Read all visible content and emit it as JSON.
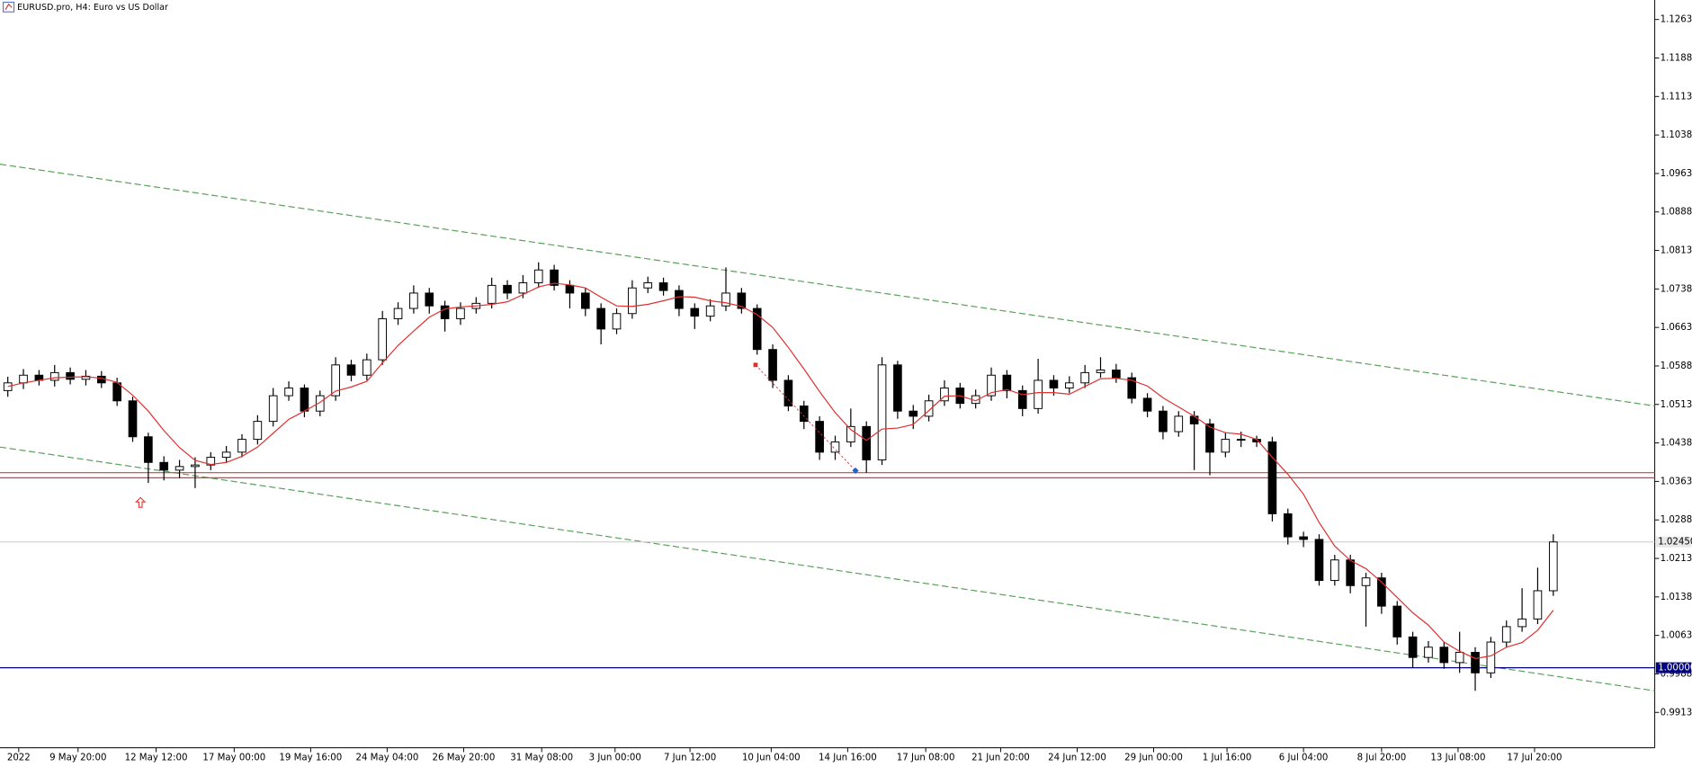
{
  "chart_data": {
    "type": "candlestick",
    "title": "EURUSD.pro, H4:  Euro vs US Dollar",
    "ylim": [
      0.9844,
      1.1301
    ],
    "xlim": [
      0,
      106
    ],
    "yticks": [
      {
        "value": 1.1263,
        "label": "1.12630"
      },
      {
        "value": 1.1188,
        "label": "1.11880"
      },
      {
        "value": 1.1113,
        "label": "1.11130"
      },
      {
        "value": 1.1038,
        "label": "1.10380"
      },
      {
        "value": 1.0963,
        "label": "1.09630"
      },
      {
        "value": 1.0888,
        "label": "1.08880"
      },
      {
        "value": 1.0813,
        "label": "1.08130"
      },
      {
        "value": 1.0738,
        "label": "1.07380"
      },
      {
        "value": 1.0663,
        "label": "1.06630"
      },
      {
        "value": 1.0588,
        "label": "1.05880"
      },
      {
        "value": 1.0513,
        "label": "1.05130"
      },
      {
        "value": 1.0438,
        "label": "1.04380"
      },
      {
        "value": 1.0363,
        "label": "1.03630"
      },
      {
        "value": 1.0288,
        "label": "1.02880"
      },
      {
        "value": 1.0213,
        "label": "1.02130"
      },
      {
        "value": 1.0138,
        "label": "1.01380"
      },
      {
        "value": 1.0063,
        "label": "1.00630"
      },
      {
        "value": 0.9988,
        "label": "0.99880"
      },
      {
        "value": 0.9913,
        "label": "0.99130"
      }
    ],
    "xticks": [
      {
        "value": 1.2,
        "label": "2022"
      },
      {
        "value": 5.0,
        "label": "9 May 20:00"
      },
      {
        "value": 10.0,
        "label": "12 May 12:00"
      },
      {
        "value": 15.0,
        "label": "17 May 00:00"
      },
      {
        "value": 19.9,
        "label": "19 May 16:00"
      },
      {
        "value": 24.8,
        "label": "24 May 04:00"
      },
      {
        "value": 29.7,
        "label": "26 May 20:00"
      },
      {
        "value": 34.7,
        "label": "31 May 08:00"
      },
      {
        "value": 39.4,
        "label": "3 Jun 00:00"
      },
      {
        "value": 44.2,
        "label": "7 Jun 12:00"
      },
      {
        "value": 49.4,
        "label": "10 Jun 04:00"
      },
      {
        "value": 54.3,
        "label": "14 Jun 16:00"
      },
      {
        "value": 59.3,
        "label": "17 Jun 08:00"
      },
      {
        "value": 64.1,
        "label": "21 Jun 20:00"
      },
      {
        "value": 69.0,
        "label": "24 Jun 12:00"
      },
      {
        "value": 73.9,
        "label": "29 Jun 00:00"
      },
      {
        "value": 78.6,
        "label": "1 Jul 16:00"
      },
      {
        "value": 83.5,
        "label": "6 Jul 04:00"
      },
      {
        "value": 88.5,
        "label": "8 Jul 20:00"
      },
      {
        "value": 93.4,
        "label": "13 Jul 08:00"
      },
      {
        "value": 98.3,
        "label": "17 Jul 20:00"
      }
    ],
    "open": [
      1.054,
      1.0555,
      1.057,
      1.056,
      1.0575,
      1.0562,
      1.0568,
      1.0555,
      1.052,
      1.045,
      1.04,
      1.0385,
      1.0392,
      1.0395,
      1.041,
      1.042,
      1.0445,
      1.048,
      1.053,
      1.0545,
      1.05,
      1.053,
      1.059,
      1.057,
      1.06,
      1.068,
      1.07,
      1.073,
      1.0705,
      1.068,
      1.07,
      1.071,
      1.0745,
      1.073,
      1.075,
      1.0775,
      1.0745,
      1.073,
      1.07,
      1.066,
      1.069,
      1.074,
      1.075,
      1.0735,
      1.07,
      1.0685,
      1.0705,
      1.073,
      1.07,
      1.062,
      1.056,
      1.051,
      1.048,
      1.042,
      1.044,
      1.047,
      1.0405,
      1.059,
      1.05,
      1.049,
      1.052,
      1.0545,
      1.0515,
      1.053,
      1.057,
      1.054,
      1.0505,
      1.056,
      1.0545,
      1.0555,
      1.0575,
      1.058,
      1.0565,
      1.0525,
      1.05,
      1.046,
      1.049,
      1.0475,
      1.042,
      1.0445,
      1.0445,
      1.044,
      1.03,
      1.0255,
      1.025,
      1.017,
      1.021,
      1.016,
      1.0175,
      1.012,
      1.006,
      1.002,
      1.004,
      1.001,
      1.003,
      0.999,
      1.005,
      1.008,
      1.0095,
      1.015
    ],
    "high": [
      1.0567,
      1.0582,
      1.058,
      1.059,
      1.0585,
      1.058,
      1.0578,
      1.0565,
      1.0528,
      1.0458,
      1.0412,
      1.0405,
      1.041,
      1.042,
      1.0432,
      1.0455,
      1.0492,
      1.0545,
      1.0558,
      1.0552,
      1.054,
      1.0605,
      1.06,
      1.0612,
      1.0695,
      1.0712,
      1.0745,
      1.074,
      1.0715,
      1.0712,
      1.0722,
      1.076,
      1.0755,
      1.0765,
      1.079,
      1.0785,
      1.0755,
      1.074,
      1.071,
      1.07,
      1.0755,
      1.0762,
      1.076,
      1.0745,
      1.071,
      1.0718,
      1.078,
      1.074,
      1.0708,
      1.063,
      1.057,
      1.052,
      1.049,
      1.0452,
      1.0505,
      1.048,
      1.0605,
      1.0598,
      1.0512,
      1.0532,
      1.056,
      1.0555,
      1.0542,
      1.0585,
      1.058,
      1.055,
      1.0602,
      1.057,
      1.0568,
      1.059,
      1.0605,
      1.0592,
      1.0575,
      1.0535,
      1.051,
      1.05,
      1.05,
      1.0485,
      1.0458,
      1.046,
      1.0452,
      1.045,
      1.031,
      1.0265,
      1.026,
      1.022,
      1.022,
      1.0185,
      1.0185,
      1.013,
      1.007,
      1.0052,
      1.005,
      1.007,
      1.004,
      1.006,
      1.0092,
      1.0155,
      1.0195,
      1.026
    ],
    "low": [
      1.0528,
      1.0543,
      1.055,
      1.0548,
      1.0552,
      1.055,
      1.0545,
      1.051,
      1.044,
      1.036,
      1.0365,
      1.037,
      1.035,
      1.0385,
      1.04,
      1.041,
      1.0435,
      1.047,
      1.052,
      1.0488,
      1.049,
      1.052,
      1.0558,
      1.056,
      1.059,
      1.0668,
      1.069,
      1.069,
      1.0655,
      1.0668,
      1.069,
      1.07,
      1.0718,
      1.072,
      1.074,
      1.0735,
      1.07,
      1.0685,
      1.063,
      1.065,
      1.068,
      1.073,
      1.0725,
      1.0685,
      1.066,
      1.0675,
      1.0695,
      1.069,
      1.061,
      1.0545,
      1.05,
      1.0465,
      1.0405,
      1.0405,
      1.043,
      1.038,
      1.0395,
      1.0485,
      1.0465,
      1.048,
      1.051,
      1.0505,
      1.0505,
      1.052,
      1.0525,
      1.049,
      1.0495,
      1.053,
      1.0535,
      1.0545,
      1.0565,
      1.0555,
      1.0515,
      1.0488,
      1.0445,
      1.045,
      1.0385,
      1.0375,
      1.041,
      1.043,
      1.043,
      1.0285,
      1.024,
      1.0235,
      1.016,
      1.016,
      1.0145,
      1.008,
      1.0105,
      1.0045,
      1.0,
      1.001,
      0.9998,
      0.999,
      0.9955,
      0.998,
      1.004,
      1.007,
      1.0085,
      1.014
    ],
    "close": [
      1.0555,
      1.057,
      1.056,
      1.0575,
      1.0562,
      1.0568,
      1.0555,
      1.052,
      1.045,
      1.04,
      1.0385,
      1.0392,
      1.0395,
      1.041,
      1.042,
      1.0445,
      1.048,
      1.053,
      1.0545,
      1.05,
      1.053,
      1.059,
      1.057,
      1.06,
      1.068,
      1.07,
      1.073,
      1.0705,
      1.068,
      1.07,
      1.071,
      1.0745,
      1.073,
      1.075,
      1.0775,
      1.0745,
      1.073,
      1.07,
      1.066,
      1.069,
      1.074,
      1.075,
      1.0735,
      1.07,
      1.0685,
      1.0705,
      1.073,
      1.07,
      1.062,
      1.056,
      1.051,
      1.048,
      1.042,
      1.044,
      1.047,
      1.0405,
      1.059,
      1.05,
      1.049,
      1.052,
      1.0545,
      1.0515,
      1.053,
      1.057,
      1.054,
      1.0505,
      1.056,
      1.0545,
      1.0555,
      1.0575,
      1.058,
      1.0565,
      1.0525,
      1.05,
      1.046,
      1.049,
      1.0475,
      1.042,
      1.0445,
      1.0445,
      1.044,
      1.03,
      1.0255,
      1.025,
      1.017,
      1.021,
      1.016,
      1.0175,
      1.012,
      1.006,
      1.002,
      1.004,
      1.001,
      1.003,
      0.999,
      1.005,
      1.008,
      1.0095,
      1.015,
      1.0245
    ],
    "ma": {
      "color": "#e03030",
      "values": [
        1.0548,
        1.0555,
        1.056,
        1.0565,
        1.0566,
        1.0567,
        1.0564,
        1.0556,
        1.0531,
        1.05,
        1.0462,
        1.0429,
        1.0404,
        1.0396,
        1.04,
        1.0412,
        1.043,
        1.0457,
        1.0484,
        1.05,
        1.0517,
        1.0539,
        1.0547,
        1.0558,
        1.0594,
        1.0628,
        1.0656,
        1.0683,
        1.0699,
        1.0703,
        1.0705,
        1.0708,
        1.0713,
        1.0727,
        1.0742,
        1.0749,
        1.0746,
        1.074,
        1.0722,
        1.0705,
        1.0704,
        1.0708,
        1.0715,
        1.0723,
        1.0722,
        1.0715,
        1.0711,
        1.0704,
        1.0688,
        1.0663,
        1.0624,
        1.0582,
        1.0538,
        1.0497,
        1.0464,
        1.0443,
        1.0465,
        1.0467,
        1.0474,
        1.0501,
        1.0529,
        1.053,
        1.052,
        1.0536,
        1.0542,
        1.0532,
        1.0536,
        1.0536,
        1.0533,
        1.0548,
        1.0563,
        1.0564,
        1.056,
        1.0549,
        1.0526,
        1.0508,
        1.049,
        1.0469,
        1.0458,
        1.0455,
        1.0445,
        1.041,
        1.0377,
        1.0338,
        1.0283,
        1.0237,
        1.0209,
        1.0193,
        1.0167,
        1.0137,
        1.0107,
        1.0083,
        1.005,
        1.0032,
        1.0018,
        1.0023,
        1.004,
        1.0049,
        1.0073,
        1.0112
      ]
    },
    "trendlines": [
      {
        "x": [
          0,
          106
        ],
        "y": [
          1.0981,
          1.051
        ],
        "color": "#5aa05a"
      },
      {
        "x": [
          0,
          106
        ],
        "y": [
          1.043,
          0.9955
        ],
        "color": "#5aa05a"
      }
    ],
    "levels": [
      {
        "value": 1.038,
        "color": "#d04040"
      },
      {
        "value": 1.037,
        "color": "#d04040"
      },
      {
        "value": 1.0,
        "color": "#000080",
        "label": "1.00000"
      }
    ],
    "bid_line": {
      "value": 1.0245,
      "label": "1.02450",
      "color": "#c8c8c8"
    },
    "trade": {
      "x": [
        48.4,
        54.8
      ],
      "y": [
        1.059,
        1.0384
      ]
    },
    "arrow": {
      "x": 9.0,
      "y": 1.0321,
      "color": "#e03030"
    }
  }
}
